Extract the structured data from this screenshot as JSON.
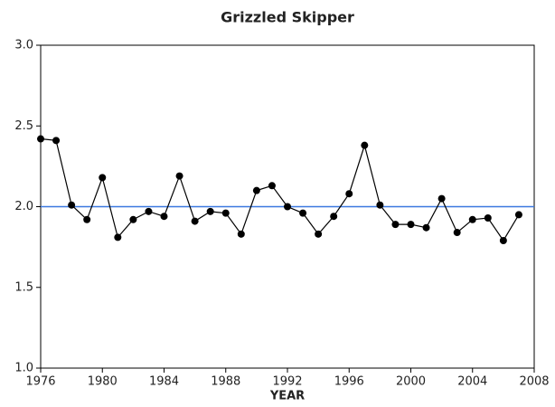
{
  "chart_data": {
    "type": "line",
    "title": "Grizzled Skipper",
    "x_label": "YEAR",
    "x": [
      1976,
      1977,
      1978,
      1979,
      1980,
      1981,
      1982,
      1983,
      1984,
      1985,
      1986,
      1987,
      1988,
      1989,
      1990,
      1991,
      1992,
      1993,
      1994,
      1995,
      1996,
      1997,
      1998,
      1999,
      2000,
      2001,
      2002,
      2003,
      2004,
      2005,
      2006,
      2007
    ],
    "series": [
      {
        "color": "#000000",
        "values": [
          2.42,
          2.41,
          2.01,
          1.92,
          2.18,
          1.81,
          1.92,
          1.97,
          1.94,
          2.19,
          1.91,
          1.97,
          1.96,
          1.83,
          2.1,
          2.13,
          2.0,
          1.96,
          1.83,
          1.94,
          2.08,
          2.38,
          2.01,
          1.89,
          1.89,
          1.87,
          2.05,
          1.84,
          1.92,
          1.93,
          1.79,
          1.95
        ]
      }
    ],
    "xlim": [
      1976,
      2008
    ],
    "xticks": [
      1976,
      1980,
      1984,
      1988,
      1992,
      1996,
      2000,
      2004,
      2008
    ],
    "ylim": [
      1.0,
      3.0
    ],
    "yticks": [
      {
        "value": 1.0,
        "label": "1.0"
      },
      1.5,
      {
        "value": 2.0,
        "label": "2.0"
      },
      2.5,
      {
        "value": 3.0,
        "label": "3.0"
      }
    ],
    "reference_line": {
      "value": 2.0,
      "color": "#3a78e0"
    }
  }
}
